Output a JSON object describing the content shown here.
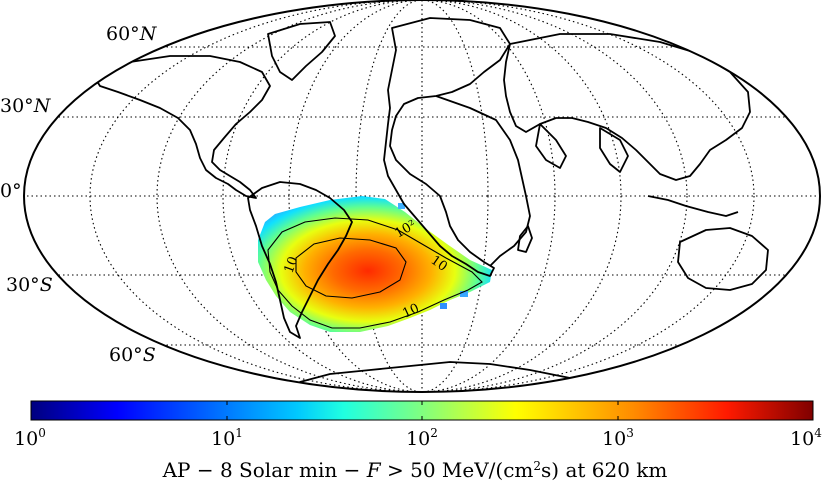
{
  "map": {
    "projection": "mollweide",
    "graticule_style": "dotted",
    "lat_labels": [
      {
        "id": "60n",
        "deg": "60°",
        "hem": "N"
      },
      {
        "id": "30n",
        "deg": "30°",
        "hem": "N"
      },
      {
        "id": "0",
        "deg": "0°",
        "hem": ""
      },
      {
        "id": "30s",
        "deg": "30°",
        "hem": "S"
      },
      {
        "id": "60s",
        "deg": "60°",
        "hem": "S"
      }
    ],
    "contours": [
      {
        "label": "10",
        "description": "outer flux contour"
      },
      {
        "label": "10",
        "description": "outer flux contour (north-east)"
      },
      {
        "label": "10",
        "description": "outer flux contour (west)"
      },
      {
        "label": "10²",
        "description": "inner flux contour"
      }
    ],
    "anomaly_region": "South Atlantic Anomaly",
    "colormap": [
      "#00007f",
      "#0000ff",
      "#007fff",
      "#00ffff",
      "#7fff7f",
      "#ffff00",
      "#ff7f00",
      "#ff0000",
      "#7f0000"
    ]
  },
  "colorbar": {
    "scale": "log",
    "range": [
      1,
      10000
    ],
    "ticks": [
      {
        "base": "10",
        "exp": "0"
      },
      {
        "base": "10",
        "exp": "1"
      },
      {
        "base": "10",
        "exp": "2"
      },
      {
        "base": "10",
        "exp": "3"
      },
      {
        "base": "10",
        "exp": "4"
      }
    ]
  },
  "caption": {
    "part1": "AP − 8 Solar min − ",
    "var": "F",
    "part2": " > 50 MeV/(cm",
    "sup": "2",
    "part3": "s) at 620 km"
  }
}
